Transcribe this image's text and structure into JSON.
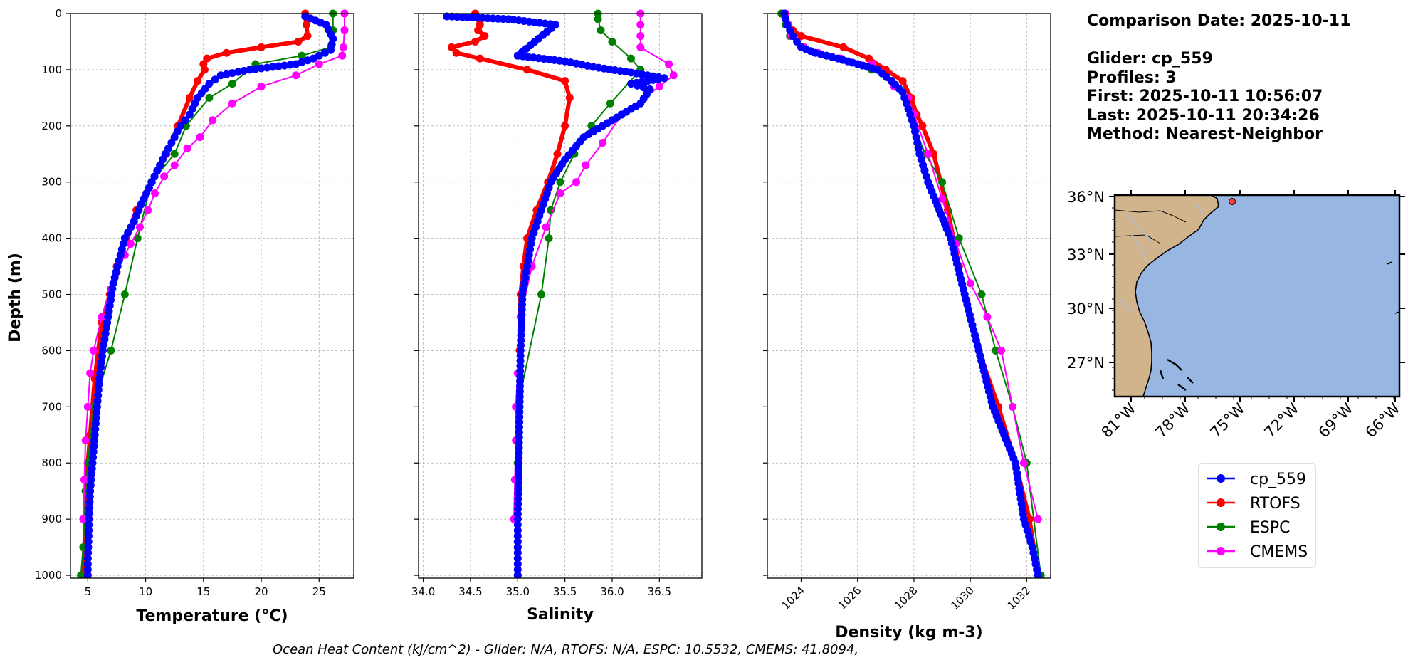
{
  "chart_data": [
    {
      "type": "line",
      "xlabel": "Temperature (°C)",
      "ylabel": "Depth (m)",
      "xlim": [
        3.5,
        28
      ],
      "ylim": [
        1005,
        0
      ],
      "xticks": [
        5,
        10,
        15,
        20,
        25
      ],
      "yticks": [
        0,
        100,
        200,
        300,
        400,
        500,
        600,
        700,
        800,
        900,
        1000
      ],
      "grid": true,
      "series": [
        {
          "name": "RTOFS",
          "color": "#ff0000",
          "style": "thick",
          "x": [
            23.8,
            23.9,
            24.0,
            23.2,
            20.0,
            17.0,
            15.3,
            15.0,
            15.1,
            14.5,
            13.8,
            12.8,
            11.8,
            10.5,
            9.2,
            8.3,
            7.5,
            6.9,
            6.2,
            5.9,
            5.6,
            5.4,
            5.2,
            5.0,
            4.9,
            4.8,
            4.7,
            4.6
          ],
          "y": [
            0,
            20,
            40,
            50,
            60,
            70,
            80,
            90,
            100,
            120,
            150,
            200,
            250,
            300,
            350,
            400,
            450,
            500,
            550,
            600,
            650,
            700,
            750,
            800,
            850,
            900,
            950,
            1000
          ]
        },
        {
          "name": "cp_559",
          "color": "#0000ff",
          "style": "dense",
          "x": [
            23.8,
            25.6,
            26.2,
            26.0,
            24.5,
            23.0,
            21.0,
            19.0,
            16.5,
            15.5,
            14.5,
            13.8,
            13.0,
            12.5,
            11.7,
            11.0,
            10.3,
            9.6,
            9.0,
            8.2,
            7.7,
            7.2,
            6.9,
            6.6,
            6.3,
            6.0,
            5.8,
            5.6,
            5.4,
            5.2,
            5.1,
            5.05,
            5.0,
            5.0,
            5.0
          ],
          "y": [
            5,
            20,
            45,
            65,
            80,
            90,
            95,
            100,
            110,
            125,
            150,
            180,
            200,
            220,
            250,
            280,
            310,
            340,
            370,
            400,
            440,
            480,
            520,
            560,
            600,
            650,
            700,
            750,
            800,
            850,
            900,
            940,
            970,
            990,
            1000
          ]
        },
        {
          "name": "ESPC",
          "color": "#008000",
          "style": "normal",
          "x": [
            26.2,
            26.2,
            26.0,
            23.5,
            19.5,
            17.5,
            15.5,
            13.5,
            12.5,
            10.5,
            9.3,
            8.2,
            7.0,
            5.5,
            5.0,
            4.8,
            4.7,
            4.6,
            4.4
          ],
          "y": [
            0,
            30,
            60,
            75,
            90,
            125,
            150,
            200,
            250,
            300,
            400,
            500,
            600,
            700,
            800,
            850,
            900,
            950,
            1000
          ]
        },
        {
          "name": "CMEMS",
          "color": "#ff00ff",
          "style": "normal",
          "x": [
            27.2,
            27.2,
            27.1,
            27.0,
            25.0,
            23.0,
            20.0,
            17.5,
            15.8,
            14.7,
            13.6,
            12.5,
            11.6,
            10.8,
            10.2,
            9.5,
            8.7,
            8.2,
            7.5,
            7.0,
            6.2,
            5.5,
            5.2,
            5.0,
            4.8,
            4.7,
            4.6
          ],
          "y": [
            0,
            30,
            60,
            75,
            90,
            110,
            130,
            160,
            190,
            220,
            240,
            270,
            290,
            320,
            350,
            380,
            410,
            430,
            460,
            490,
            540,
            600,
            640,
            700,
            760,
            830,
            900
          ]
        }
      ]
    },
    {
      "type": "line",
      "xlabel": "Salinity",
      "xlim": [
        33.95,
        36.95
      ],
      "ylim": [
        1005,
        0
      ],
      "xticks": [
        "34.0",
        "34.5",
        "35.0",
        "35.5",
        "36.0",
        "36.5"
      ],
      "grid": true,
      "series": [
        {
          "name": "RTOFS",
          "color": "#ff0000",
          "style": "thick",
          "x": [
            34.55,
            34.6,
            34.58,
            34.65,
            34.55,
            34.3,
            34.35,
            34.6,
            35.1,
            35.5,
            35.55,
            35.5,
            35.42,
            35.32,
            35.2,
            35.1,
            35.06,
            35.03,
            35.02,
            35.01,
            35.0,
            35.0,
            35.0,
            35.0
          ],
          "y": [
            0,
            20,
            30,
            40,
            50,
            60,
            70,
            80,
            100,
            120,
            150,
            200,
            250,
            300,
            350,
            400,
            450,
            500,
            600,
            700,
            800,
            900,
            950,
            1000
          ]
        },
        {
          "name": "cp_559",
          "color": "#0000ff",
          "style": "dense",
          "x": [
            34.25,
            34.9,
            35.4,
            35.0,
            35.5,
            35.8,
            36.2,
            36.55,
            36.2,
            36.4,
            36.3,
            36.1,
            35.9,
            35.7,
            35.5,
            35.35,
            35.25,
            35.15,
            35.1,
            35.05,
            35.03,
            35.02,
            35.01,
            35.0,
            35.0,
            35.0
          ],
          "y": [
            5,
            10,
            20,
            75,
            85,
            95,
            105,
            115,
            125,
            135,
            160,
            180,
            200,
            220,
            260,
            300,
            350,
            400,
            450,
            500,
            600,
            700,
            800,
            900,
            950,
            1000
          ]
        },
        {
          "name": "ESPC",
          "color": "#008000",
          "style": "normal",
          "x": [
            35.85,
            35.85,
            35.88,
            36.0,
            36.2,
            36.3,
            35.98,
            35.78,
            35.6,
            35.45,
            35.35,
            35.33,
            35.25,
            35.0,
            35.0,
            35.0,
            35.0
          ],
          "y": [
            0,
            10,
            30,
            50,
            80,
            100,
            160,
            200,
            250,
            300,
            350,
            400,
            500,
            700,
            800,
            900,
            1000
          ]
        },
        {
          "name": "CMEMS",
          "color": "#ff00ff",
          "style": "normal",
          "x": [
            36.3,
            36.3,
            36.3,
            36.3,
            36.6,
            36.65,
            36.5,
            36.1,
            35.9,
            35.72,
            35.62,
            35.45,
            35.3,
            35.15,
            35.03,
            35.0,
            34.98,
            34.98,
            34.97,
            34.96
          ],
          "y": [
            0,
            20,
            40,
            60,
            90,
            110,
            130,
            180,
            230,
            270,
            300,
            320,
            380,
            450,
            540,
            640,
            700,
            760,
            830,
            900
          ]
        }
      ]
    },
    {
      "type": "line",
      "xlabel": "Density (kg m-3)",
      "xlim": [
        1022.8,
        1032.85
      ],
      "ylim": [
        1005,
        0
      ],
      "xticks": [
        "1024",
        "1026",
        "1028",
        "1030",
        "1032"
      ],
      "grid": true,
      "series": [
        {
          "name": "RTOFS",
          "color": "#ff0000",
          "style": "thick",
          "x": [
            1023.3,
            1023.5,
            1023.7,
            1024.0,
            1025.5,
            1026.4,
            1027.0,
            1027.6,
            1027.9,
            1028.1,
            1028.3,
            1028.7,
            1029.2,
            1029.6,
            1030.3,
            1031.0,
            1031.6,
            1032.1,
            1032.4
          ],
          "y": [
            0,
            20,
            30,
            40,
            60,
            80,
            100,
            120,
            150,
            180,
            200,
            250,
            350,
            450,
            600,
            700,
            800,
            900,
            1000
          ]
        },
        {
          "name": "cp_559",
          "color": "#0000ff",
          "style": "dense",
          "x": [
            1023.4,
            1023.5,
            1023.7,
            1024.0,
            1024.5,
            1025.3,
            1026.0,
            1026.7,
            1027.2,
            1027.6,
            1027.8,
            1028.0,
            1028.2,
            1028.5,
            1028.9,
            1029.3,
            1029.8,
            1030.3,
            1030.8,
            1031.2,
            1031.6,
            1031.9,
            1032.2,
            1032.4
          ],
          "y": [
            0,
            20,
            40,
            60,
            70,
            80,
            90,
            100,
            120,
            140,
            170,
            200,
            250,
            300,
            350,
            400,
            500,
            600,
            700,
            750,
            800,
            900,
            950,
            1000
          ]
        },
        {
          "name": "ESPC",
          "color": "#008000",
          "style": "normal",
          "x": [
            1023.3,
            1023.45,
            1023.6,
            1024.0,
            1025.4,
            1026.5,
            1027.2,
            1027.7,
            1028.0,
            1028.4,
            1029.0,
            1029.6,
            1030.4,
            1030.9,
            1031.5,
            1032.0,
            1032.5
          ],
          "y": [
            0,
            20,
            40,
            60,
            80,
            100,
            120,
            150,
            200,
            250,
            300,
            400,
            500,
            600,
            700,
            800,
            1000
          ]
        },
        {
          "name": "CMEMS",
          "color": "#ff00ff",
          "style": "normal",
          "x": [
            1023.45,
            1023.55,
            1023.65,
            1024.1,
            1024.6,
            1025.4,
            1026.5,
            1027.3,
            1027.8,
            1028.0,
            1028.5,
            1029.0,
            1029.5,
            1030.0,
            1030.6,
            1031.1,
            1031.5,
            1031.9,
            1032.4
          ],
          "y": [
            0,
            20,
            40,
            60,
            70,
            80,
            90,
            130,
            150,
            180,
            250,
            330,
            410,
            480,
            540,
            600,
            700,
            800,
            900
          ]
        }
      ]
    }
  ],
  "info": {
    "date_line": "Comparison Date: 2025-10-11",
    "glider_line": "Glider: cp_559",
    "profiles_line": "Profiles: 3",
    "first_line": "First: 2025-10-11 10:56:07",
    "last_line": "Last: 2025-10-11 20:34:26",
    "method_line": "Method: Nearest-Neighbor"
  },
  "map": {
    "lat_ticks": [
      "36°N",
      "33°N",
      "30°N",
      "27°N"
    ],
    "lon_ticks": [
      "81°W",
      "78°W",
      "75°W",
      "72°W",
      "69°W",
      "66°W"
    ],
    "ocean_color": "#97b6e1",
    "land_color": "#d2b48c",
    "glider_marker_color": "#ff3b30"
  },
  "legend": {
    "entries": [
      {
        "label": "cp_559",
        "color": "#0000ff"
      },
      {
        "label": "RTOFS",
        "color": "#ff0000"
      },
      {
        "label": "ESPC",
        "color": "#008000"
      },
      {
        "label": "CMEMS",
        "color": "#ff00ff"
      }
    ]
  },
  "footer": {
    "ohc_text": "Ocean Heat Content (kJ/cm^2) - Glider: N/A,  RTOFS: N/A,  ESPC: 10.5532,  CMEMS: 41.8094,"
  }
}
